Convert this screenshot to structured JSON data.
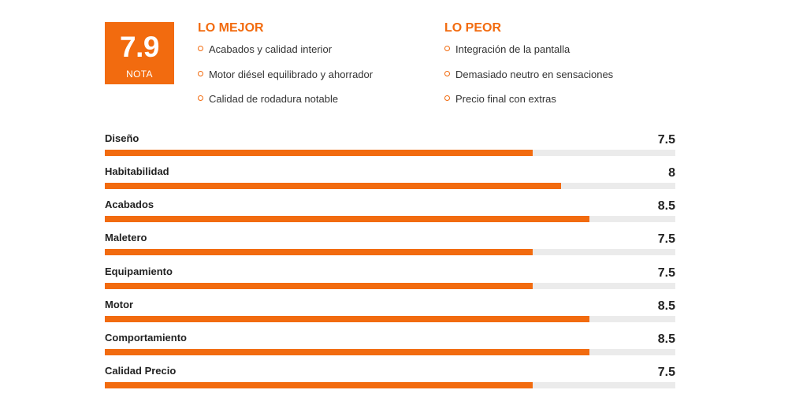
{
  "score": {
    "value": "7.9",
    "label": "NOTA"
  },
  "best": {
    "title": "LO MEJOR",
    "items": [
      "Acabados y calidad interior",
      "Motor diésel equilibrado y ahorrador",
      "Calidad de rodadura notable"
    ]
  },
  "worst": {
    "title": "LO PEOR",
    "items": [
      "Integración de la pantalla",
      "Demasiado neutro en sensaciones",
      "Precio final con extras"
    ]
  },
  "ratings": [
    {
      "label": "Diseño",
      "value": "7.5"
    },
    {
      "label": "Habitabilidad",
      "value": "8"
    },
    {
      "label": "Acabados",
      "value": "8.5"
    },
    {
      "label": "Maletero",
      "value": "7.5"
    },
    {
      "label": "Equipamiento",
      "value": "7.5"
    },
    {
      "label": "Motor",
      "value": "8.5"
    },
    {
      "label": "Comportamiento",
      "value": "8.5"
    },
    {
      "label": "Calidad Precio",
      "value": "7.5"
    }
  ],
  "colors": {
    "accent": "#f26b0f",
    "track": "#ebebeb"
  }
}
